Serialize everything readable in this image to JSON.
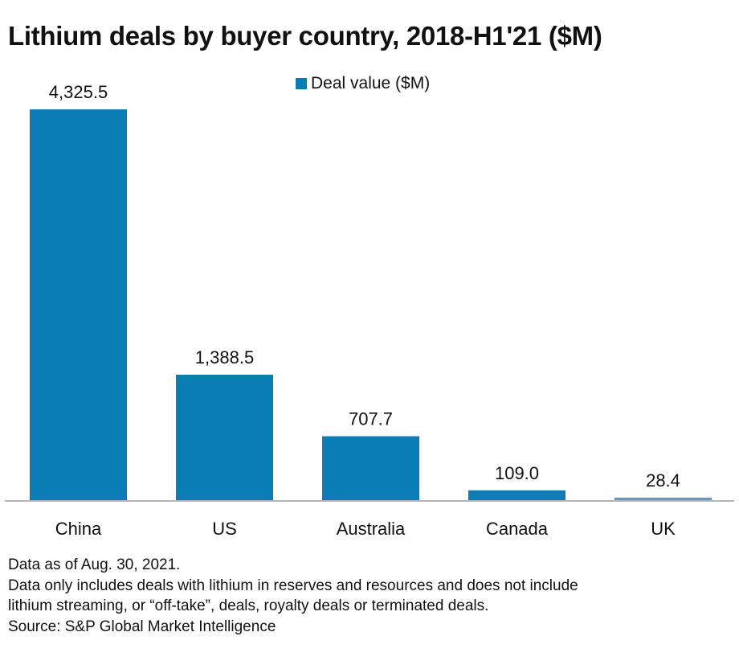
{
  "chart_data": {
    "type": "bar",
    "title": "Lithium deals by buyer country, 2018-H1'21 ($M)",
    "categories": [
      "China",
      "US",
      "Australia",
      "Canada",
      "UK"
    ],
    "series": [
      {
        "name": "Deal value ($M)",
        "values": [
          4325.5,
          1388.5,
          707.7,
          109.0,
          28.4
        ]
      }
    ],
    "data_labels": [
      "4,325.5",
      "1,388.5",
      "707.7",
      "109.0",
      "28.4"
    ],
    "xlabel": "",
    "ylabel": "",
    "ylim": [
      0,
      4325.5
    ],
    "grid": false,
    "legend_position": "top",
    "colors": {
      "bar": "#0B7DB5",
      "bar_small": "#5A9CC9",
      "axis": "#B5B5B5"
    }
  },
  "notes": {
    "date": "Data as of Aug. 30, 2021.",
    "scope_line1": "Data only includes deals with lithium in reserves and resources and does not include",
    "scope_line2": "lithium streaming, or “off-take”, deals, royalty deals or terminated deals.",
    "source": "Source: S&P Global Market Intelligence"
  }
}
